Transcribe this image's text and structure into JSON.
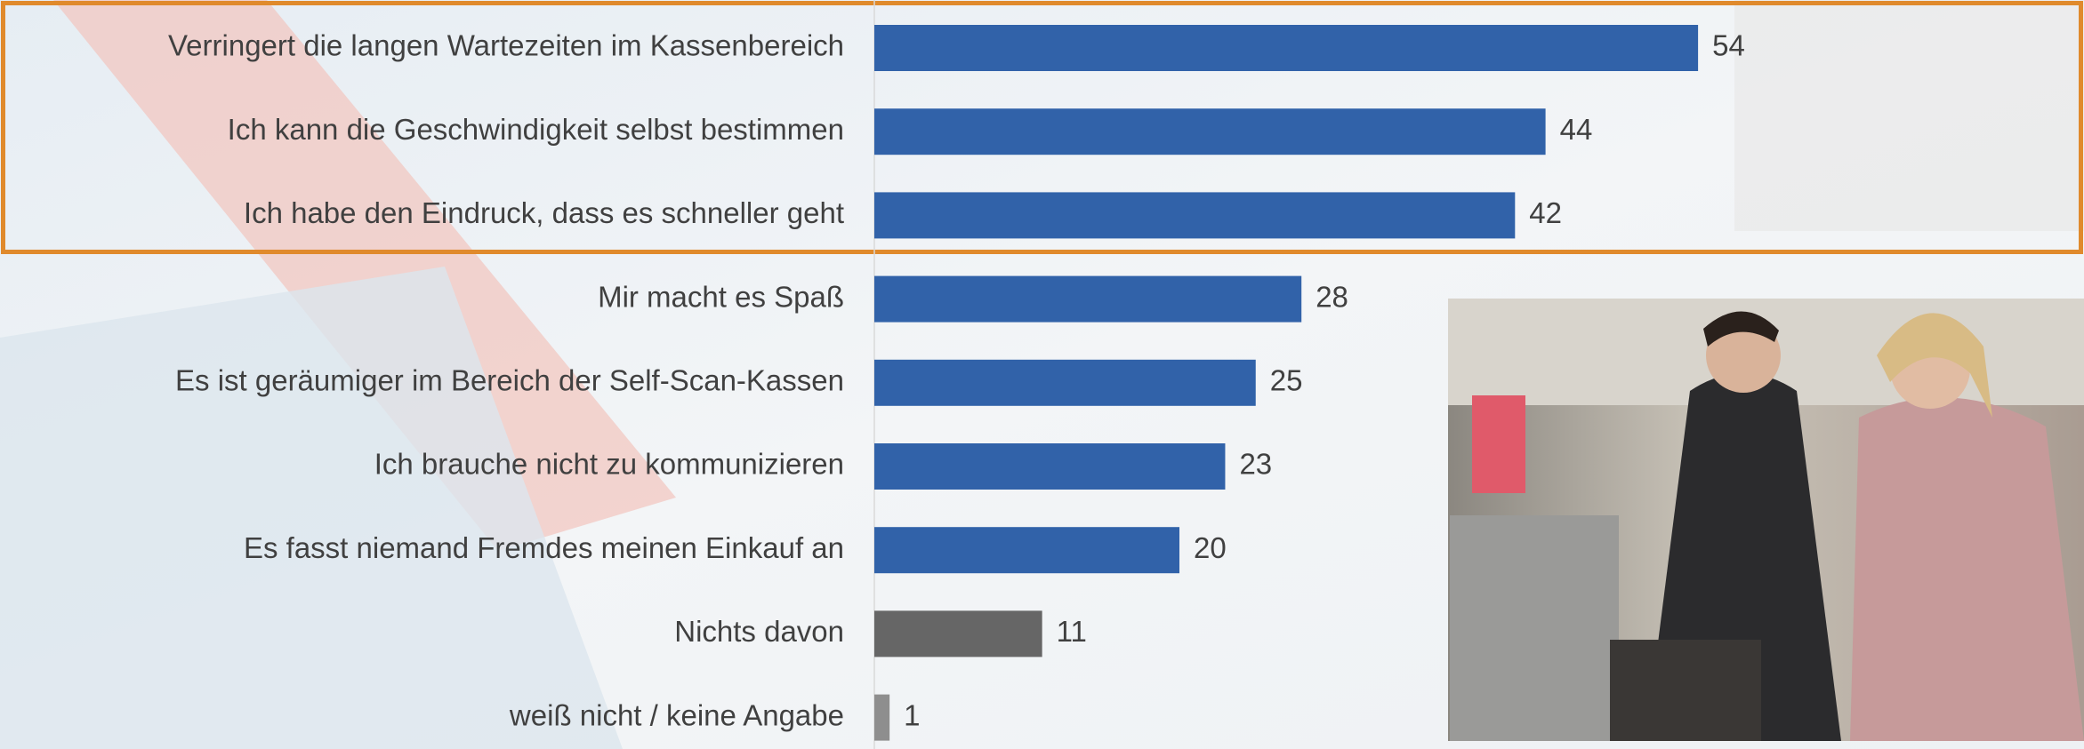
{
  "chart_data": {
    "type": "bar",
    "orientation": "horizontal",
    "categories": [
      "Verringert die langen Wartezeiten im Kassenbereich",
      "Ich kann die Geschwindigkeit selbst bestimmen",
      "Ich habe den Eindruck, dass es schneller geht",
      "Mir macht es Spaß",
      "Es ist geräumiger im Bereich der Self-Scan-Kassen",
      "Ich brauche nicht zu kommunizieren",
      "Es fasst niemand Fremdes meinen Einkauf an",
      "Nichts davon",
      "weiß nicht / keine Angabe"
    ],
    "values": [
      54,
      44,
      42,
      28,
      25,
      23,
      20,
      11,
      1
    ],
    "colors": [
      "#3162a9",
      "#3162a9",
      "#3162a9",
      "#3162a9",
      "#3162a9",
      "#3162a9",
      "#3162a9",
      "#666666",
      "#8e8e8e"
    ]
  }
}
